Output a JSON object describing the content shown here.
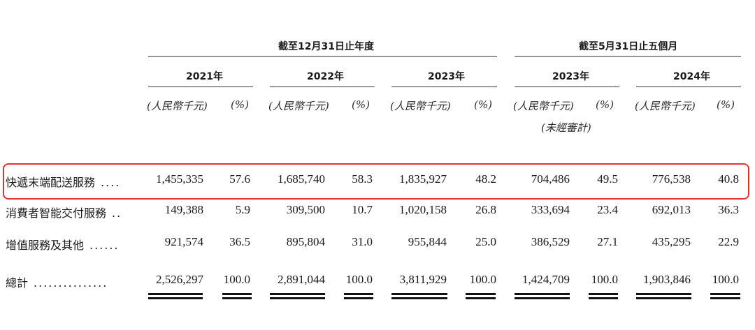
{
  "header": {
    "group1": "截至12月31日止年度",
    "group2": "截至5月31日止五個月",
    "years": [
      "2021年",
      "2022年",
      "2023年",
      "2023年",
      "2024年"
    ],
    "unit_amount": "(人民幣千元)",
    "unit_pct": "(%)",
    "unaudited": "(未經審計)"
  },
  "rows": [
    {
      "label": "快遞末端配送服務",
      "dots": "....",
      "values": [
        "1,455,335",
        "57.6",
        "1,685,740",
        "58.3",
        "1,835,927",
        "48.2",
        "704,486",
        "49.5",
        "776,538",
        "40.8"
      ]
    },
    {
      "label": "消費者智能交付服務",
      "dots": "..",
      "values": [
        "149,388",
        "5.9",
        "309,500",
        "10.7",
        "1,020,158",
        "26.8",
        "333,694",
        "23.4",
        "692,013",
        "36.3"
      ]
    },
    {
      "label": "增值服務及其他",
      "dots": "......",
      "values": [
        "921,574",
        "36.5",
        "895,804",
        "31.0",
        "955,844",
        "25.0",
        "386,529",
        "27.1",
        "435,295",
        "22.9"
      ]
    },
    {
      "label": "總計",
      "dots": "...............",
      "values": [
        "2,526,297",
        "100.0",
        "2,891,044",
        "100.0",
        "3,811,929",
        "100.0",
        "1,424,709",
        "100.0",
        "1,903,846",
        "100.0"
      ]
    }
  ],
  "highlight_color": "#e0352b"
}
